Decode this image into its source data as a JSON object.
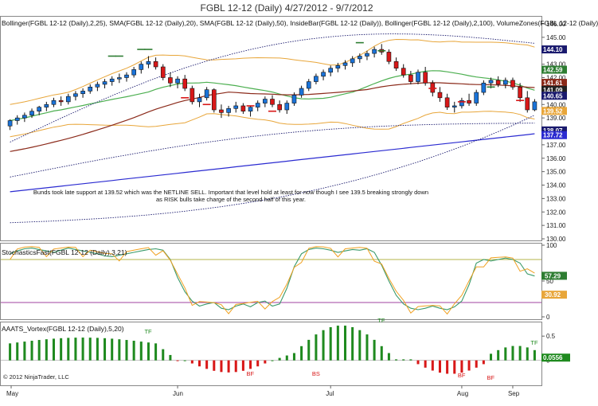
{
  "title": "FGBL 12-12 (Daily)  4/27/2012 - 9/7/2012",
  "indicator_line": "Bollinger(FGBL 12-12 (Daily),2,25), SMA(FGBL 12-12 (Daily),20), SMA(FGBL 12-12 (Daily),50), InsideBar(FGBL 12-12 (Daily)), Bollinger(FGBL 12-12 (Daily),2,100), VolumeZones(FGBL 12-12 (Daily)",
  "annotation": "Bunds took late support at 139.52 which was the NETLINE SELL. Important that level hold at least for now though I see 139.5 breaking strongly down as RISK bulls take  charge of the second half of this year.",
  "stoch_label": "StochasticsFast(FGBL 12-12 (Daily),3,21)",
  "vortex_label": "AAATS_Vortex(FGBL 12-12 (Daily),5,20)",
  "copyright": "© 2012 NinjaTrader, LLC",
  "colors": {
    "up_candle": "#1a73d9",
    "down_candle": "#d81818",
    "bb_inner": "#e8a63a",
    "bb_outer": "#1a1a6e",
    "sma20": "#4caf50",
    "sma50": "#8b2a1a",
    "sma200": "#2b2bd1",
    "stoch_k": "#3a9a6a",
    "stoch_d": "#f0a020",
    "vortex_up": "#1f8a1f",
    "vortex_down": "#d81818",
    "volume_up": "#8ee08e",
    "volume_down": "#f48f8f"
  },
  "chart_data": [
    {
      "type": "candlestick",
      "name": "price",
      "ylim": [
        130.0,
        146.0
      ],
      "y_ticks": [
        "146.00",
        "145.00",
        "144.00",
        "143.00",
        "142.00",
        "141.00",
        "140.00",
        "139.00",
        "138.00",
        "137.00",
        "136.00",
        "135.00",
        "134.00",
        "133.00",
        "132.00",
        "131.00",
        "130.00"
      ],
      "price_flags": [
        {
          "text": "144.10",
          "color": "#1a1a6e"
        },
        {
          "text": "142.59",
          "color": "#2e7d32"
        },
        {
          "text": "141.61",
          "color": "#8b2a1a"
        },
        {
          "text": "141.09",
          "color": "#222222"
        },
        {
          "text": "140.65",
          "color": "#1a1a6e"
        },
        {
          "text": "139.52",
          "color": "#e8a63a"
        },
        {
          "text": "138.07",
          "color": "#1a1a6e"
        },
        {
          "text": "137.72",
          "color": "#2b2bd1"
        }
      ],
      "x_labels": [
        "May",
        "Jun",
        "Jul",
        "Aug",
        "Sep"
      ],
      "candles": [
        [
          138.4,
          138.9,
          138.1,
          138.8
        ],
        [
          138.8,
          139.2,
          138.5,
          139.0
        ],
        [
          139.0,
          139.4,
          138.7,
          139.2
        ],
        [
          139.2,
          139.7,
          139.0,
          139.5
        ],
        [
          139.5,
          139.9,
          139.2,
          139.8
        ],
        [
          139.8,
          140.2,
          139.5,
          140.0
        ],
        [
          140.0,
          140.5,
          139.8,
          140.3
        ],
        [
          140.3,
          140.6,
          139.9,
          140.2
        ],
        [
          140.2,
          140.8,
          140.0,
          140.6
        ],
        [
          140.6,
          141.0,
          140.3,
          140.8
        ],
        [
          140.8,
          141.2,
          140.5,
          141.0
        ],
        [
          141.0,
          141.5,
          140.8,
          141.3
        ],
        [
          141.3,
          141.7,
          141.0,
          141.5
        ],
        [
          141.5,
          141.9,
          141.2,
          141.7
        ],
        [
          141.7,
          142.1,
          141.4,
          141.9
        ],
        [
          141.9,
          142.3,
          141.6,
          142.0
        ],
        [
          142.0,
          142.4,
          141.7,
          142.2
        ],
        [
          142.2,
          142.8,
          142.0,
          142.6
        ],
        [
          142.6,
          143.2,
          142.3,
          143.0
        ],
        [
          143.0,
          143.6,
          142.7,
          143.2
        ],
        [
          143.2,
          143.5,
          142.6,
          142.8
        ],
        [
          142.8,
          143.0,
          141.8,
          142.0
        ],
        [
          142.0,
          142.4,
          141.3,
          141.6
        ],
        [
          141.6,
          142.1,
          141.2,
          141.9
        ],
        [
          141.9,
          142.2,
          141.0,
          141.2
        ],
        [
          141.2,
          141.4,
          140.0,
          140.2
        ],
        [
          140.2,
          140.8,
          139.8,
          140.5
        ],
        [
          140.5,
          141.3,
          140.3,
          141.1
        ],
        [
          141.1,
          141.2,
          139.4,
          139.6
        ],
        [
          139.6,
          140.0,
          139.0,
          139.4
        ],
        [
          139.4,
          139.9,
          139.1,
          139.7
        ],
        [
          139.7,
          140.2,
          139.4,
          139.9
        ],
        [
          139.9,
          140.1,
          139.3,
          139.5
        ],
        [
          139.5,
          139.9,
          139.1,
          139.8
        ],
        [
          139.8,
          140.3,
          139.5,
          140.1
        ],
        [
          140.1,
          140.6,
          139.8,
          140.4
        ],
        [
          140.4,
          140.7,
          139.8,
          140.0
        ],
        [
          140.0,
          140.3,
          139.4,
          139.6
        ],
        [
          139.6,
          140.3,
          139.3,
          140.1
        ],
        [
          140.1,
          140.9,
          139.9,
          140.7
        ],
        [
          140.7,
          141.4,
          140.5,
          141.2
        ],
        [
          141.2,
          141.9,
          141.0,
          141.7
        ],
        [
          141.7,
          142.3,
          141.5,
          142.1
        ],
        [
          142.1,
          142.6,
          141.8,
          142.4
        ],
        [
          142.4,
          142.9,
          142.1,
          142.7
        ],
        [
          142.7,
          143.1,
          142.4,
          142.9
        ],
        [
          142.9,
          143.3,
          142.6,
          143.1
        ],
        [
          143.1,
          143.6,
          142.8,
          143.4
        ],
        [
          143.4,
          143.8,
          143.1,
          143.6
        ],
        [
          143.6,
          144.0,
          143.3,
          143.8
        ],
        [
          143.8,
          144.3,
          143.5,
          144.1
        ],
        [
          144.1,
          144.5,
          143.7,
          143.9
        ],
        [
          143.9,
          144.1,
          143.0,
          143.2
        ],
        [
          143.2,
          143.5,
          142.5,
          142.7
        ],
        [
          142.7,
          143.0,
          142.0,
          142.2
        ],
        [
          142.2,
          142.5,
          141.5,
          141.7
        ],
        [
          141.7,
          142.6,
          141.5,
          142.4
        ],
        [
          142.4,
          142.8,
          141.4,
          141.6
        ],
        [
          141.6,
          141.8,
          140.6,
          140.9
        ],
        [
          140.9,
          141.3,
          140.2,
          140.5
        ],
        [
          140.5,
          140.8,
          139.6,
          139.8
        ],
        [
          139.8,
          140.2,
          139.4,
          139.9
        ],
        [
          139.9,
          140.5,
          139.7,
          140.3
        ],
        [
          140.3,
          140.8,
          139.9,
          140.1
        ],
        [
          140.1,
          141.1,
          139.9,
          140.9
        ],
        [
          140.9,
          141.8,
          140.7,
          141.6
        ],
        [
          141.6,
          142.0,
          141.2,
          141.8
        ],
        [
          141.8,
          142.1,
          141.3,
          141.5
        ],
        [
          141.5,
          142.0,
          141.2,
          141.8
        ],
        [
          141.8,
          142.0,
          141.1,
          141.3
        ],
        [
          141.3,
          141.6,
          140.2,
          140.5
        ],
        [
          140.5,
          141.0,
          139.4,
          139.6
        ],
        [
          139.6,
          140.4,
          139.5,
          140.2
        ]
      ]
    },
    {
      "type": "line",
      "name": "stochastics",
      "ylim": [
        0,
        100
      ],
      "y_ticks": [
        "100",
        "50",
        "0"
      ],
      "value_flags": [
        {
          "text": "57.29",
          "color": "#2e7d32"
        },
        {
          "text": "30.92",
          "color": "#e8a63a"
        }
      ],
      "levels": [
        80,
        20
      ]
    },
    {
      "type": "bar",
      "name": "vortex",
      "ylim": [
        -0.45,
        0.75
      ],
      "y_ticks": [
        "0.5",
        "0"
      ],
      "value_flags": [
        {
          "text": "0.0556",
          "color": "#1f8a1f"
        }
      ],
      "markers": [
        "TF",
        "BF",
        "BS",
        "TF",
        "BF",
        "BF",
        "TF"
      ]
    }
  ]
}
